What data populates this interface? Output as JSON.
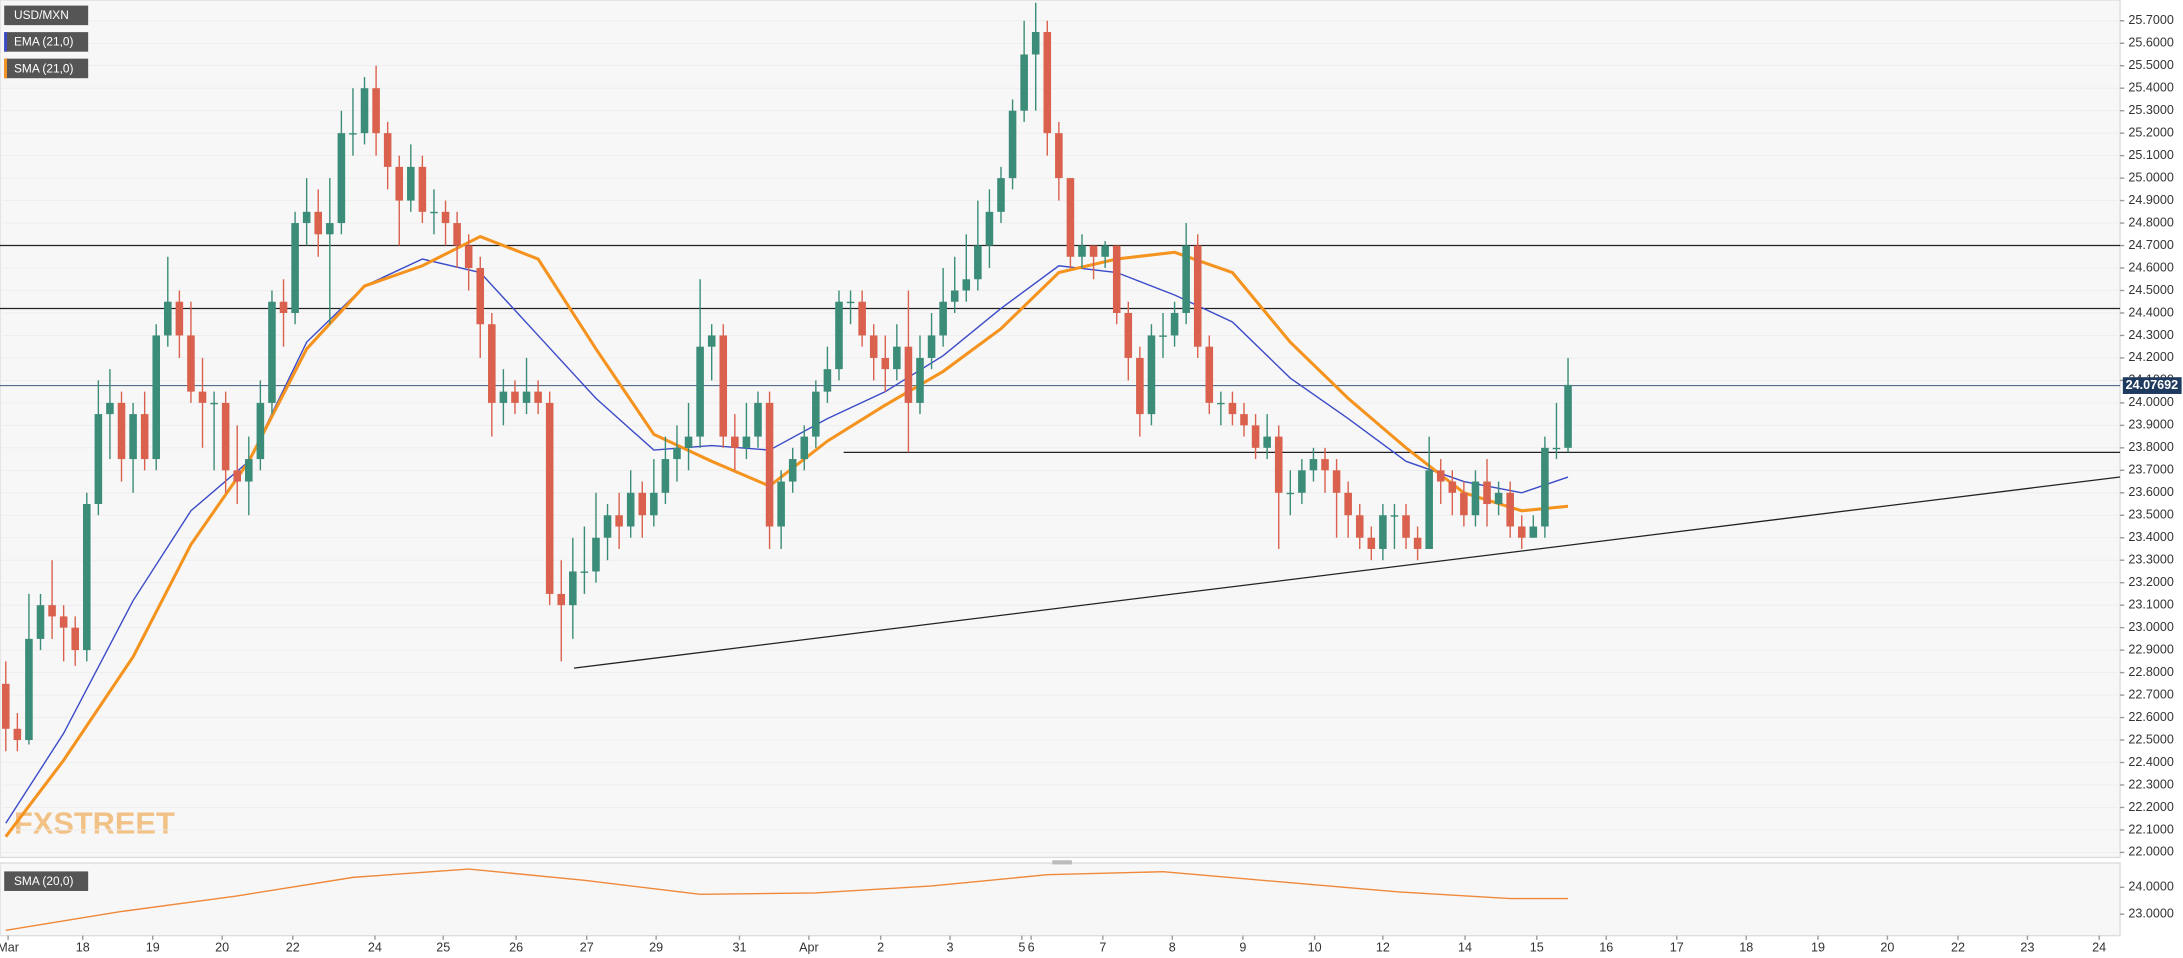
{
  "chart_data": {
    "type": "candlestick",
    "series": [
      {
        "name": "USD/MXN",
        "up_color": "#3b8c78",
        "down_color": "#d9614e",
        "open": [
          22.75,
          22.55,
          22.5,
          22.95,
          23.1,
          23.05,
          23.0,
          22.9,
          23.55,
          23.95,
          24.0,
          23.75,
          23.95,
          23.75,
          24.3,
          24.45,
          24.3,
          24.05,
          24.0,
          24.0,
          23.7,
          23.65,
          23.75,
          24.0,
          24.45,
          24.4,
          24.8,
          24.85,
          24.75,
          24.8,
          25.2,
          25.2,
          25.4,
          25.2,
          25.05,
          24.9,
          25.05,
          24.85,
          24.85,
          24.8,
          24.7,
          24.6,
          24.35,
          24.0,
          24.05,
          24.0,
          24.05,
          24.0,
          23.15,
          23.1,
          23.25,
          23.25,
          23.4,
          23.5,
          23.45,
          23.6,
          23.5,
          23.6,
          23.75,
          23.8,
          23.85,
          24.25,
          24.3,
          23.85,
          23.8,
          23.85,
          24.0,
          23.45,
          23.65,
          23.75,
          23.85,
          24.05,
          24.15,
          24.45,
          24.45,
          24.3,
          24.2,
          24.15,
          24.25,
          24.0,
          24.2,
          24.3,
          24.45,
          24.5,
          24.55,
          24.7,
          24.85,
          25.0,
          25.3,
          25.55,
          25.65,
          25.2,
          25.0,
          24.65,
          24.7,
          24.65,
          24.7,
          24.4,
          24.2,
          23.95,
          24.3,
          24.3,
          24.4,
          24.7,
          24.25,
          24.0,
          24.0,
          23.95,
          23.9,
          23.8,
          23.85,
          23.6,
          23.6,
          23.7,
          23.75,
          23.7,
          23.6,
          23.5,
          23.4,
          23.35,
          23.5,
          23.5,
          23.4,
          23.35,
          23.7,
          23.65,
          23.6,
          23.5,
          23.65,
          23.55,
          23.6,
          23.45,
          23.4,
          23.45,
          23.8,
          23.8
        ],
        "high": [
          22.85,
          22.62,
          23.15,
          23.15,
          23.3,
          23.1,
          23.05,
          23.6,
          24.1,
          24.15,
          24.05,
          24.0,
          24.05,
          24.35,
          24.65,
          24.5,
          24.45,
          24.2,
          24.05,
          24.05,
          23.9,
          23.85,
          24.1,
          24.5,
          24.55,
          24.85,
          25.0,
          24.95,
          25.0,
          25.3,
          25.4,
          25.45,
          25.5,
          25.25,
          25.1,
          25.15,
          25.1,
          24.95,
          24.9,
          24.85,
          24.75,
          24.65,
          24.4,
          24.15,
          24.1,
          24.2,
          24.1,
          24.05,
          23.3,
          23.4,
          23.45,
          23.6,
          23.55,
          23.6,
          23.7,
          23.65,
          23.75,
          23.85,
          23.9,
          24.0,
          24.55,
          24.35,
          24.35,
          23.95,
          24.0,
          24.05,
          24.05,
          23.7,
          23.8,
          23.9,
          24.1,
          24.25,
          24.5,
          24.5,
          24.5,
          24.35,
          24.3,
          24.35,
          24.5,
          24.3,
          24.4,
          24.6,
          24.65,
          24.75,
          24.9,
          24.95,
          25.05,
          25.35,
          25.7,
          25.78,
          25.7,
          25.25,
          25.0,
          24.75,
          24.7,
          24.72,
          24.7,
          24.45,
          24.25,
          24.35,
          24.4,
          24.45,
          24.8,
          24.75,
          24.3,
          24.05,
          24.05,
          24.0,
          23.95,
          23.95,
          23.9,
          23.7,
          23.75,
          23.8,
          23.8,
          23.75,
          23.65,
          23.55,
          23.45,
          23.55,
          23.55,
          23.55,
          23.45,
          23.85,
          23.75,
          23.7,
          23.65,
          23.7,
          23.75,
          23.65,
          23.65,
          23.5,
          23.5,
          23.85,
          24.0,
          24.2
        ],
        "low": [
          22.45,
          22.45,
          22.48,
          22.9,
          22.95,
          22.85,
          22.83,
          22.85,
          23.5,
          23.75,
          23.65,
          23.6,
          23.7,
          23.7,
          24.25,
          24.2,
          24.0,
          23.8,
          23.7,
          23.6,
          23.55,
          23.5,
          23.7,
          23.95,
          24.25,
          24.35,
          24.7,
          24.65,
          24.35,
          24.75,
          25.1,
          25.15,
          25.1,
          24.95,
          24.7,
          24.85,
          24.8,
          24.75,
          24.7,
          24.6,
          24.5,
          24.2,
          23.85,
          23.9,
          23.95,
          23.95,
          23.95,
          23.1,
          22.85,
          22.95,
          23.15,
          23.2,
          23.3,
          23.35,
          23.4,
          23.4,
          23.45,
          23.55,
          23.65,
          23.7,
          23.8,
          24.1,
          23.8,
          23.7,
          23.75,
          23.8,
          23.35,
          23.35,
          23.6,
          23.7,
          23.8,
          24.0,
          24.1,
          24.35,
          24.25,
          24.1,
          24.05,
          24.1,
          23.78,
          23.95,
          24.15,
          24.25,
          24.4,
          24.45,
          24.5,
          24.6,
          24.8,
          24.95,
          25.25,
          25.3,
          25.1,
          24.9,
          24.6,
          24.6,
          24.55,
          24.6,
          24.35,
          24.1,
          23.85,
          23.9,
          24.2,
          24.25,
          24.35,
          24.2,
          23.95,
          23.9,
          23.9,
          23.85,
          23.75,
          23.75,
          23.35,
          23.5,
          23.55,
          23.65,
          23.6,
          23.4,
          23.4,
          23.35,
          23.3,
          23.3,
          23.35,
          23.35,
          23.3,
          23.35,
          23.55,
          23.5,
          23.45,
          23.45,
          23.45,
          23.5,
          23.4,
          23.35,
          23.4,
          23.4,
          23.75,
          23.78
        ],
        "close": [
          22.55,
          22.5,
          22.95,
          23.1,
          23.05,
          23.0,
          22.9,
          23.55,
          23.95,
          24.0,
          23.75,
          23.95,
          23.75,
          24.3,
          24.45,
          24.3,
          24.05,
          24.0,
          24.0,
          23.7,
          23.65,
          23.75,
          24.0,
          24.45,
          24.4,
          24.8,
          24.85,
          24.75,
          24.8,
          25.2,
          25.2,
          25.4,
          25.2,
          25.05,
          24.9,
          25.05,
          24.85,
          24.85,
          24.8,
          24.7,
          24.6,
          24.35,
          24.0,
          24.05,
          24.0,
          24.05,
          24.0,
          23.15,
          23.1,
          23.25,
          23.25,
          23.4,
          23.5,
          23.45,
          23.6,
          23.5,
          23.6,
          23.75,
          23.8,
          23.85,
          24.25,
          24.3,
          23.85,
          23.8,
          23.85,
          24.0,
          23.45,
          23.65,
          23.75,
          23.85,
          24.05,
          24.15,
          24.45,
          24.45,
          24.3,
          24.2,
          24.15,
          24.25,
          24.0,
          24.2,
          24.3,
          24.45,
          24.5,
          24.55,
          24.7,
          24.85,
          25.0,
          25.3,
          25.55,
          25.65,
          25.2,
          25.0,
          24.65,
          24.7,
          24.65,
          24.7,
          24.4,
          24.2,
          23.95,
          24.3,
          24.3,
          24.4,
          24.7,
          24.25,
          24.0,
          24.0,
          23.95,
          23.9,
          23.8,
          23.85,
          23.6,
          23.6,
          23.7,
          23.75,
          23.7,
          23.6,
          23.5,
          23.4,
          23.35,
          23.5,
          23.5,
          23.4,
          23.35,
          23.7,
          23.65,
          23.6,
          23.5,
          23.65,
          23.55,
          23.6,
          23.45,
          23.4,
          23.45,
          23.8,
          23.8,
          24.08
        ]
      },
      {
        "name": "EMA (21,0)",
        "type": "line",
        "color": "#3b4bc8",
        "x": [
          0,
          5,
          11,
          16,
          21,
          26,
          31,
          36,
          41,
          46,
          51,
          56,
          61,
          66,
          71,
          76,
          81,
          86,
          91,
          96,
          101,
          106,
          111,
          116,
          121,
          126,
          131,
          135
        ],
        "values": [
          22.13,
          22.53,
          23.12,
          23.52,
          23.74,
          24.27,
          24.52,
          24.64,
          24.58,
          24.3,
          24.02,
          23.79,
          23.81,
          23.79,
          23.93,
          24.05,
          24.21,
          24.42,
          24.61,
          24.58,
          24.48,
          24.36,
          24.11,
          23.93,
          23.74,
          23.65,
          23.6,
          23.67
        ]
      },
      {
        "name": "SMA (21,0)",
        "type": "line",
        "color": "#f5931f",
        "x": [
          0,
          5,
          11,
          16,
          21,
          26,
          31,
          36,
          41,
          46,
          51,
          56,
          61,
          66,
          71,
          76,
          81,
          86,
          91,
          96,
          101,
          106,
          111,
          116,
          121,
          126,
          131,
          135
        ],
        "values": [
          22.07,
          22.41,
          22.87,
          23.37,
          23.74,
          24.24,
          24.52,
          24.61,
          24.74,
          24.64,
          24.24,
          23.86,
          23.74,
          23.63,
          23.83,
          23.99,
          24.14,
          24.33,
          24.58,
          24.64,
          24.67,
          24.58,
          24.27,
          24.02,
          23.8,
          23.6,
          23.52,
          23.54
        ]
      }
    ],
    "xlim": [
      -0.5,
      182.7
    ],
    "ylim": [
      21.99,
      25.78
    ],
    "xticks": [
      {
        "value": 0.2,
        "label": "Mar"
      },
      {
        "value": 6.65,
        "label": "18"
      },
      {
        "value": 12.7,
        "label": "19"
      },
      {
        "value": 18.7,
        "label": "20"
      },
      {
        "value": 24.8,
        "label": "22"
      },
      {
        "value": 31.9,
        "label": "24"
      },
      {
        "value": 37.8,
        "label": "25"
      },
      {
        "value": 44.1,
        "label": "26"
      },
      {
        "value": 50.2,
        "label": "27"
      },
      {
        "value": 56.2,
        "label": "29"
      },
      {
        "value": 63.4,
        "label": "31"
      },
      {
        "value": 69.4,
        "label": "Apr"
      },
      {
        "value": 75.6,
        "label": "2"
      },
      {
        "value": 81.6,
        "label": "3"
      },
      {
        "value": 87.8,
        "label": "5"
      },
      {
        "value": 88.6,
        "label": "6"
      },
      {
        "value": 94.8,
        "label": "7"
      },
      {
        "value": 100.8,
        "label": "8"
      },
      {
        "value": 106.9,
        "label": "9"
      },
      {
        "value": 113.1,
        "label": "10"
      },
      {
        "value": 119.0,
        "label": "12"
      },
      {
        "value": 126.1,
        "label": "14"
      },
      {
        "value": 132.3,
        "label": "15"
      },
      {
        "value": 138.3,
        "label": "16"
      },
      {
        "value": 144.4,
        "label": "17"
      },
      {
        "value": 150.4,
        "label": "18"
      },
      {
        "value": 156.6,
        "label": "19"
      },
      {
        "value": 162.6,
        "label": "20"
      },
      {
        "value": 168.7,
        "label": "22"
      },
      {
        "value": 174.7,
        "label": "23"
      },
      {
        "value": 180.9,
        "label": "24"
      }
    ],
    "yticks": [
      {
        "value": 22.0,
        "label": "22.0000"
      },
      {
        "value": 22.1,
        "label": "22.1000"
      },
      {
        "value": 22.2,
        "label": "22.2000"
      },
      {
        "value": 22.3,
        "label": "22.3000"
      },
      {
        "value": 22.4,
        "label": "22.4000"
      },
      {
        "value": 22.5,
        "label": "22.5000"
      },
      {
        "value": 22.6,
        "label": "22.6000"
      },
      {
        "value": 22.7,
        "label": "22.7000"
      },
      {
        "value": 22.8,
        "label": "22.8000"
      },
      {
        "value": 22.9,
        "label": "22.9000"
      },
      {
        "value": 23.0,
        "label": "23.0000"
      },
      {
        "value": 23.1,
        "label": "23.1000"
      },
      {
        "value": 23.2,
        "label": "23.2000"
      },
      {
        "value": 23.3,
        "label": "23.3000"
      },
      {
        "value": 23.4,
        "label": "23.4000"
      },
      {
        "value": 23.5,
        "label": "23.5000"
      },
      {
        "value": 23.6,
        "label": "23.6000"
      },
      {
        "value": 23.7,
        "label": "23.7000"
      },
      {
        "value": 23.8,
        "label": "23.8000"
      },
      {
        "value": 23.9,
        "label": "23.9000"
      },
      {
        "value": 24.0,
        "label": "24.0000"
      },
      {
        "value": 24.1,
        "label": "24.1000"
      },
      {
        "value": 24.2,
        "label": "24.2000"
      },
      {
        "value": 24.3,
        "label": "24.3000"
      },
      {
        "value": 24.4,
        "label": "24.4000"
      },
      {
        "value": 24.5,
        "label": "24.5000"
      },
      {
        "value": 24.6,
        "label": "24.6000"
      },
      {
        "value": 24.7,
        "label": "24.7000"
      },
      {
        "value": 24.8,
        "label": "24.8000"
      },
      {
        "value": 24.9,
        "label": "24.9000"
      },
      {
        "value": 25.0,
        "label": "25.0000"
      },
      {
        "value": 25.1,
        "label": "25.1000"
      },
      {
        "value": 25.2,
        "label": "25.2000"
      },
      {
        "value": 25.3,
        "label": "25.3000"
      },
      {
        "value": 25.4,
        "label": "25.4000"
      },
      {
        "value": 25.5,
        "label": "25.5000"
      },
      {
        "value": 25.6,
        "label": "25.6000"
      },
      {
        "value": 25.7,
        "label": "25.7000"
      }
    ],
    "grid": true,
    "levels": [
      24.7,
      24.42
    ],
    "segments": [
      {
        "x": [
          72.4,
          182.7
        ],
        "y": [
          23.78,
          23.78
        ]
      },
      {
        "x": [
          49.1,
          182.7
        ],
        "y": [
          22.82,
          23.67
        ]
      }
    ],
    "last_price": 24.07692,
    "watermark": "FXSTREET",
    "indicator": {
      "type": "line",
      "name": "SMA (20,0)",
      "color": "#f0883a",
      "x": [
        0,
        10,
        20,
        30,
        40,
        50,
        60,
        70,
        80,
        90,
        100,
        110,
        120,
        130,
        135
      ],
      "values": [
        22.4,
        23.1,
        23.68,
        24.37,
        24.68,
        24.26,
        23.74,
        23.79,
        24.05,
        24.47,
        24.58,
        24.21,
        23.84,
        23.58,
        23.58
      ],
      "ylim": [
        22.2,
        24.8
      ],
      "yticks": [
        {
          "value": 23.0,
          "label": "23.0000"
        },
        {
          "value": 24.0,
          "label": "24.0000"
        }
      ]
    }
  }
}
